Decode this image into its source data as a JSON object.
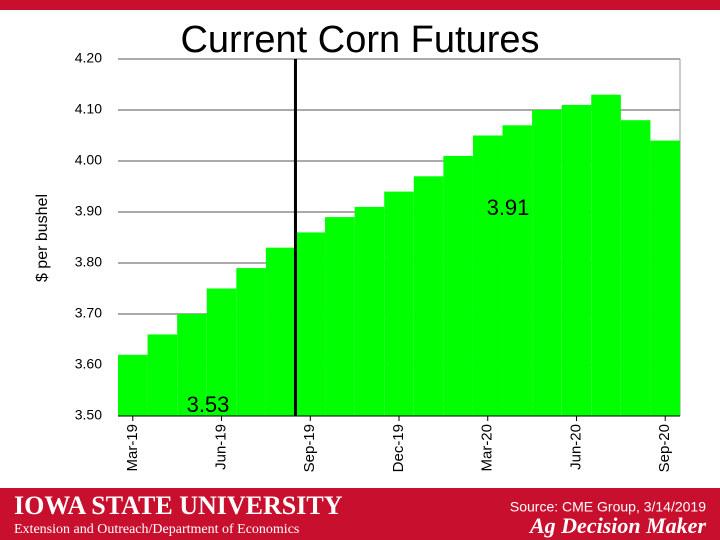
{
  "chart_data": {
    "type": "bar",
    "title": "Current Corn Futures",
    "y_label": "$ per bushel",
    "categories": [
      "Mar-19",
      null,
      null,
      "Jun-19",
      null,
      null,
      "Sep-19",
      null,
      null,
      "Dec-19",
      null,
      null,
      "Mar-20",
      null,
      null,
      "Jun-20",
      null,
      null,
      "Sep-20"
    ],
    "values": [
      3.62,
      3.66,
      3.7,
      3.75,
      3.79,
      3.83,
      3.86,
      3.89,
      3.91,
      3.94,
      3.97,
      4.01,
      4.05,
      4.07,
      4.1,
      4.11,
      4.13,
      4.08,
      4.04
    ],
    "color": "#00ff00",
    "ylim": [
      3.5,
      4.2
    ],
    "yticks": [
      {
        "value": 3.5,
        "label": "3.50"
      },
      {
        "value": 3.6,
        "label": "3.60"
      },
      {
        "value": 3.7,
        "label": "3.70"
      },
      {
        "value": 3.8,
        "label": "3.80"
      },
      {
        "value": 3.9,
        "label": "3.90"
      },
      {
        "value": 4.0,
        "label": "4.00"
      },
      {
        "value": 4.1,
        "label": "4.10"
      },
      {
        "value": 4.2,
        "label": "4.20"
      }
    ],
    "grid": true,
    "annotations": [
      "3.91",
      "3.53"
    ]
  },
  "footer": {
    "university": "IOWA STATE UNIVERSITY",
    "department": "Extension and Outreach/Department of Economics",
    "source": "Source: CME Group, 3/14/2019",
    "brand": "Ag Decision Maker"
  }
}
